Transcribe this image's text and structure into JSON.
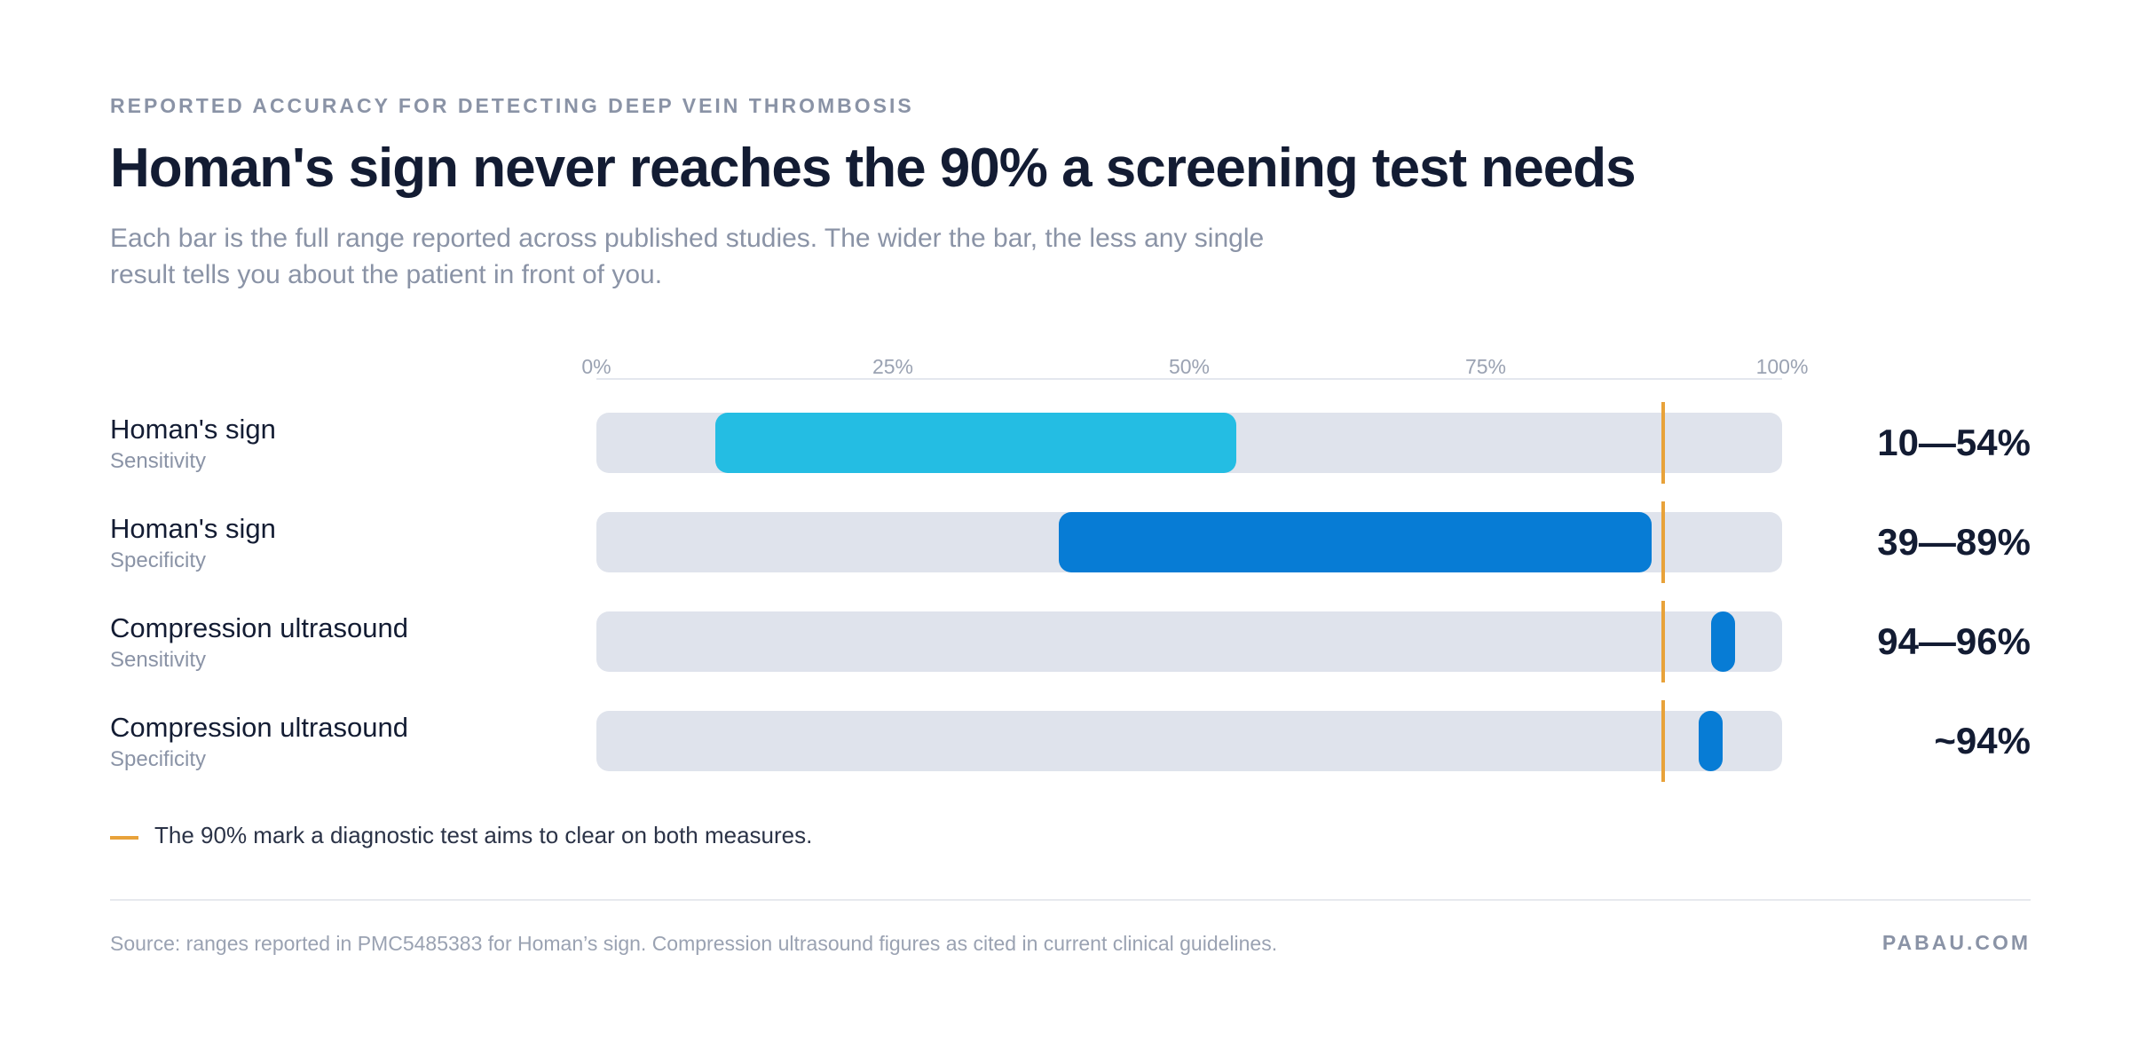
{
  "header": {
    "eyebrow": "REPORTED ACCURACY FOR DETECTING DEEP VEIN THROMBOSIS",
    "title": "Homan's sign never reaches the 90% a screening test needs",
    "subtitle": "Each bar is the full range reported across published studies. The wider the bar, the less any single result tells you about the patient in front of you."
  },
  "legend": {
    "text": "The 90% mark a diagnostic test aims to clear on both measures."
  },
  "footer": {
    "source": "Source: ranges reported in PMC5485383 for Homan’s sign. Compression ultrasound figures as cited in current clinical guidelines.",
    "brand": "PABAU.COM"
  },
  "colors": {
    "light_blue": "#24bde3",
    "blue": "#077cd5",
    "track": "#dfe3ec",
    "threshold": "#e8a23a"
  },
  "chart_data": {
    "type": "bar",
    "orientation": "horizontal-range",
    "xlim": [
      0,
      100
    ],
    "ticks": [
      "0%",
      "25%",
      "50%",
      "75%",
      "100%"
    ],
    "tick_values": [
      0,
      25,
      50,
      75,
      100
    ],
    "threshold": 90,
    "rows": [
      {
        "name": "Homan's sign",
        "measure": "Sensitivity",
        "low": 10,
        "high": 54,
        "label": "10—54%",
        "color": "#24bde3"
      },
      {
        "name": "Homan's sign",
        "measure": "Specificity",
        "low": 39,
        "high": 89,
        "label": "39—89%",
        "color": "#077cd5"
      },
      {
        "name": "Compression ultrasound",
        "measure": "Sensitivity",
        "low": 94,
        "high": 96,
        "label": "94—96%",
        "color": "#077cd5"
      },
      {
        "name": "Compression ultrasound",
        "measure": "Specificity",
        "low": 93,
        "high": 95,
        "label": "~94%",
        "color": "#077cd5"
      }
    ]
  }
}
